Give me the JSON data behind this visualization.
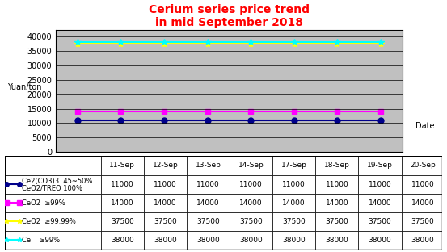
{
  "title": "Cerium series price trend\nin mid September 2018",
  "title_color": "red",
  "ylabel": "Yuan/ton",
  "xlabel": "Date",
  "dates": [
    "11-Sep",
    "12-Sep",
    "13-Sep",
    "14-Sep",
    "17-Sep",
    "18-Sep",
    "19-Sep",
    "20-Sep"
  ],
  "series": [
    {
      "label": "Ce2(CO3)3  45~50%\nCeO2/TREO 100%",
      "values": [
        11000,
        11000,
        11000,
        11000,
        11000,
        11000,
        11000,
        11000
      ],
      "color": "#00008B",
      "marker": "o",
      "linestyle": "-",
      "linewidth": 1.5,
      "markersize": 5
    },
    {
      "label": "CeO2  ≥99%",
      "values": [
        14000,
        14000,
        14000,
        14000,
        14000,
        14000,
        14000,
        14000
      ],
      "color": "magenta",
      "marker": "s",
      "linestyle": "-",
      "linewidth": 1.5,
      "markersize": 5
    },
    {
      "label": "CeO2  ≥99.99%",
      "values": [
        37500,
        37500,
        37500,
        37500,
        37500,
        37500,
        37500,
        37500
      ],
      "color": "yellow",
      "marker": "*",
      "linestyle": "-",
      "linewidth": 1.5,
      "markersize": 6
    },
    {
      "label": "Ce    ≥99%",
      "values": [
        38000,
        38000,
        38000,
        38000,
        38000,
        38000,
        38000,
        38000
      ],
      "color": "cyan",
      "marker": "*",
      "linestyle": "-",
      "linewidth": 1.5,
      "markersize": 6
    }
  ],
  "ylim": [
    0,
    42000
  ],
  "yticks": [
    0,
    5000,
    10000,
    15000,
    20000,
    25000,
    30000,
    35000,
    40000
  ],
  "chart_bg": "#C0C0C0",
  "fig_bg": "#FFFFFF",
  "table_header_bg": "#FFFFFF",
  "grid_color": "#000000",
  "grid_linewidth": 0.5
}
